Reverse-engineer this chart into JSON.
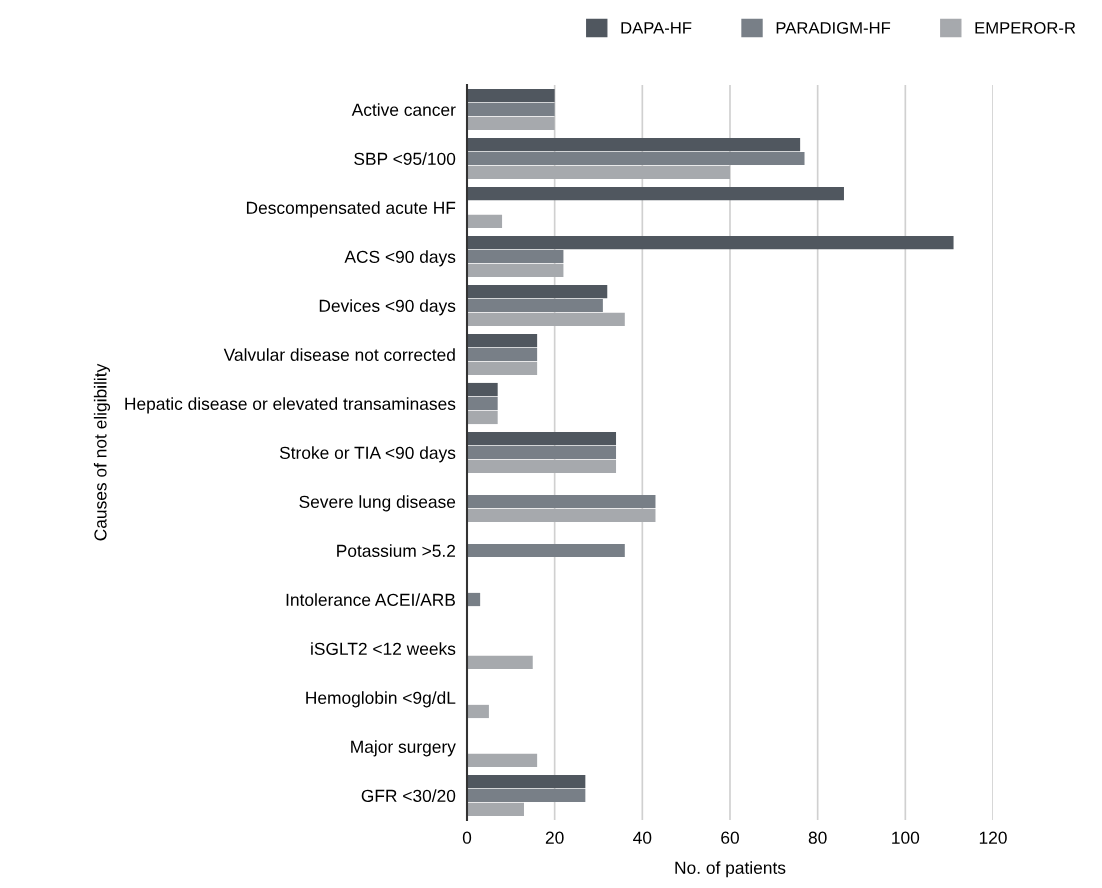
{
  "chart_data": {
    "type": "bar",
    "orientation": "horizontal",
    "xlabel": "No. of patients",
    "ylabel": "Causes of not eligibility",
    "categories": [
      "Active cancer",
      "SBP <95/100",
      "Descompensated acute HF",
      "ACS <90 days",
      "Devices <90 days",
      "Valvular disease not corrected",
      "Hepatic disease or elevated transaminases",
      "Stroke or TIA <90 days",
      "Severe lung disease",
      "Potassium >5.2",
      "Intolerance ACEI/ARB",
      "iSGLT2 <12 weeks",
      "Hemoglobin <9g/dL",
      "Major surgery",
      "GFR <30/20"
    ],
    "series": [
      {
        "name": "DAPA-HF",
        "color": "#50575f",
        "values": [
          20,
          76,
          86,
          111,
          32,
          16,
          7,
          34,
          null,
          null,
          null,
          null,
          null,
          null,
          27
        ]
      },
      {
        "name": "PARADIGM-HF",
        "color": "#787f87",
        "values": [
          20,
          77,
          null,
          22,
          31,
          16,
          7,
          34,
          43,
          36,
          3,
          null,
          null,
          null,
          27
        ]
      },
      {
        "name": "EMPEROR-R",
        "color": "#a6a9ad",
        "values": [
          20,
          60,
          8,
          22,
          36,
          16,
          7,
          34,
          43,
          null,
          null,
          15,
          5,
          16,
          13
        ]
      }
    ],
    "xlim": [
      0,
      120
    ],
    "xticks": [
      0,
      20,
      40,
      60,
      80,
      100,
      120
    ],
    "grid": "x",
    "legend": "top"
  }
}
